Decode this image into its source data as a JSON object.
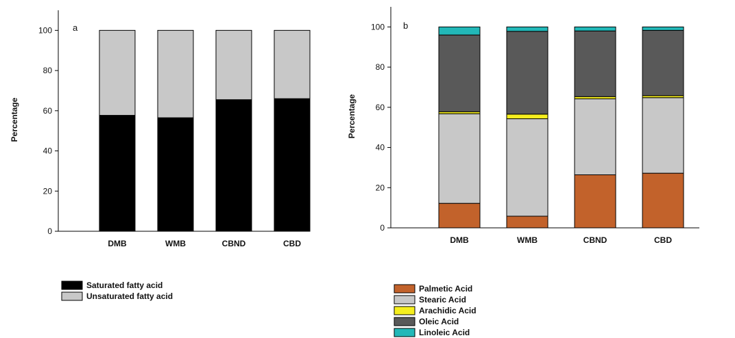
{
  "chart_data": [
    {
      "type": "bar",
      "stacked": true,
      "panel_label": "a",
      "ylabel": "Percentage",
      "ylim": [
        0,
        110
      ],
      "yticks": [
        0,
        20,
        40,
        60,
        80,
        100
      ],
      "categories": [
        "DMB",
        "WMB",
        "CBND",
        "CBD"
      ],
      "series": [
        {
          "name": "Saturated fatty acid",
          "color": "#000000",
          "values": [
            57.7,
            56.5,
            65.5,
            66.0
          ]
        },
        {
          "name": "Unsaturated fatty acid",
          "color": "#c8c8c8",
          "values": [
            42.3,
            43.5,
            34.5,
            34.0
          ]
        }
      ],
      "legend_position": "below"
    },
    {
      "type": "bar",
      "stacked": true,
      "panel_label": "b",
      "ylabel": "Percentage",
      "ylim": [
        0,
        110
      ],
      "yticks": [
        0,
        20,
        40,
        60,
        80,
        100
      ],
      "categories": [
        "DMB",
        "WMB",
        "CBND",
        "CBD"
      ],
      "series": [
        {
          "name": "Palmetic Acid",
          "color": "#c2622b",
          "values": [
            12.2,
            5.8,
            26.4,
            27.2
          ]
        },
        {
          "name": "Stearic Acid",
          "color": "#c8c8c8",
          "values": [
            44.6,
            48.5,
            37.8,
            37.6
          ]
        },
        {
          "name": "Arachidic Acid",
          "color": "#f5ee1e",
          "values": [
            1.0,
            2.3,
            1.1,
            1.0
          ]
        },
        {
          "name": "Oleic Acid",
          "color": "#595959",
          "values": [
            38.2,
            41.2,
            32.7,
            32.5
          ]
        },
        {
          "name": "Linoleic Acid",
          "color": "#22b8b8",
          "values": [
            4.0,
            2.2,
            2.0,
            1.7
          ]
        }
      ],
      "legend_position": "below"
    }
  ]
}
